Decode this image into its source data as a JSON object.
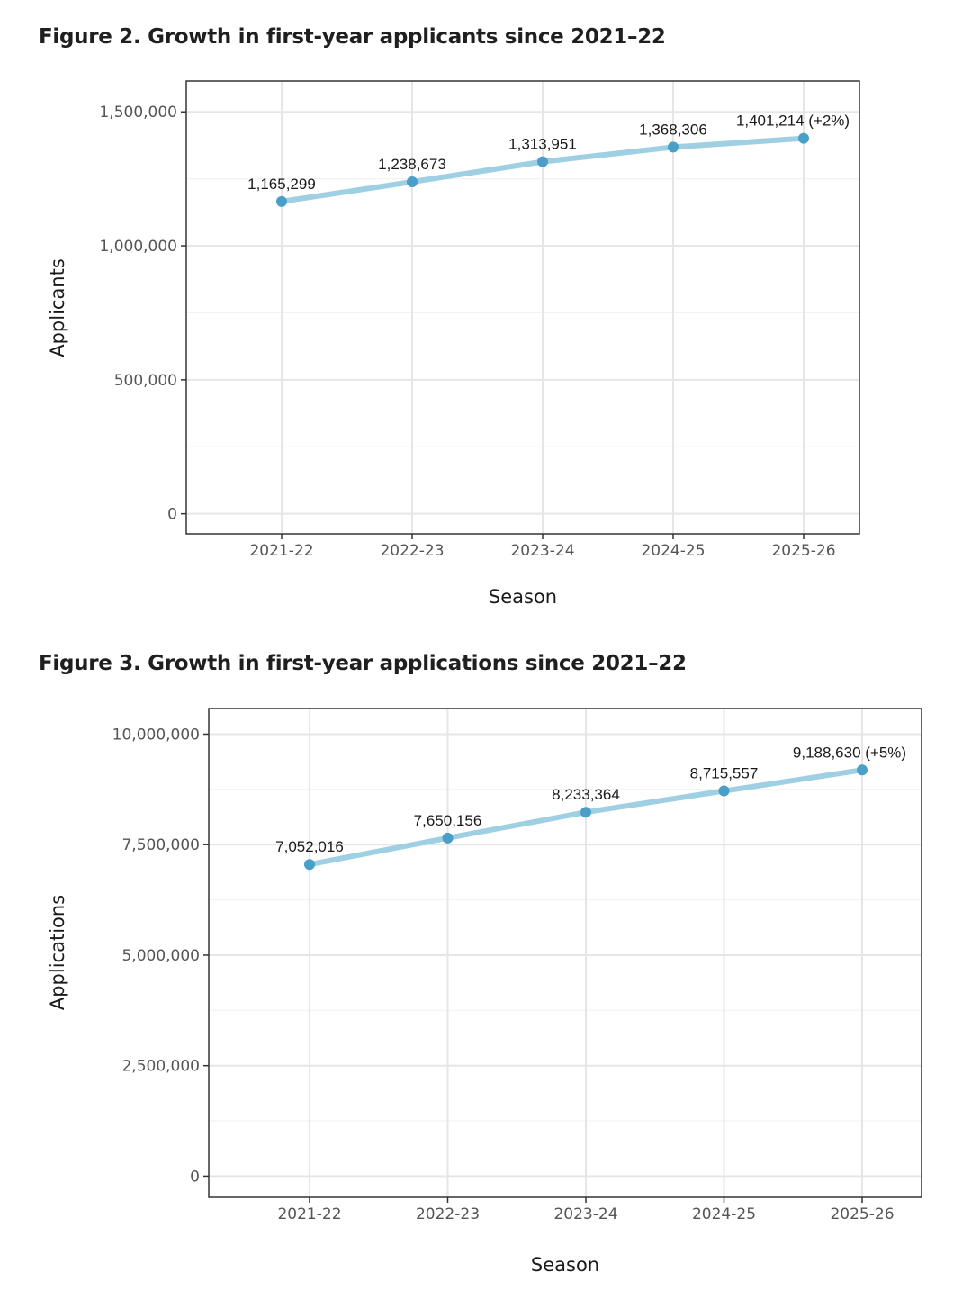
{
  "figures": [
    {
      "title": "Figure 2. Growth in first-year applicants since 2021–22",
      "chart_data": {
        "type": "line",
        "categories": [
          "2021-22",
          "2022-23",
          "2023-24",
          "2024-25",
          "2025-26"
        ],
        "values": [
          1165299,
          1238673,
          1313951,
          1368306,
          1401214
        ],
        "data_labels": [
          "1,165,299",
          "1,238,673",
          "1,313,951",
          "1,368,306",
          "1,401,214 (+2%)"
        ],
        "xlabel": "Season",
        "ylabel": "Applicants",
        "ylim": [
          -75000,
          1615000
        ],
        "yticks": [
          0,
          500000,
          1000000,
          1500000
        ],
        "ytick_labels": [
          "0",
          "500,000",
          "1,000,000",
          "1,500,000"
        ],
        "grid": true,
        "line_color": "#9ecfe2",
        "point_color": "#4a9fc8"
      }
    },
    {
      "title": "Figure 3. Growth in first-year applications since 2021–22",
      "chart_data": {
        "type": "line",
        "categories": [
          "2021-22",
          "2022-23",
          "2023-24",
          "2024-25",
          "2025-26"
        ],
        "values": [
          7052016,
          7650156,
          8233364,
          8715557,
          9188630
        ],
        "data_labels": [
          "7,052,016",
          "7,650,156",
          "8,233,364",
          "8,715,557",
          "9,188,630 (+5%)"
        ],
        "xlabel": "Season",
        "ylabel": "Applications",
        "ylim": [
          -480000,
          10580000
        ],
        "yticks": [
          0,
          2500000,
          5000000,
          7500000,
          10000000
        ],
        "ytick_labels": [
          "0",
          "2,500,000",
          "5,000,000",
          "7,500,000",
          "10,000,000"
        ],
        "grid": true,
        "line_color": "#9ecfe2",
        "point_color": "#4a9fc8"
      }
    }
  ]
}
